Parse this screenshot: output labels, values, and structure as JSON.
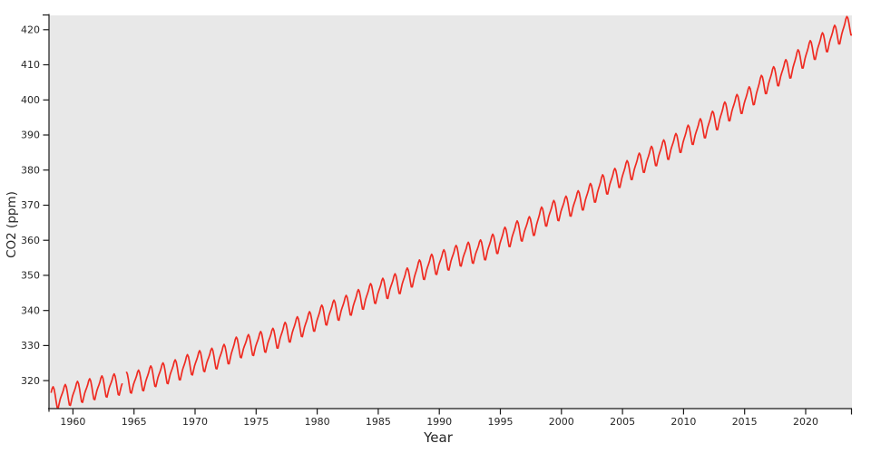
{
  "figure": {
    "background_color": "#ffffff",
    "panel_color": "#e8e8e8",
    "axis_color": "#1a1a1a",
    "text_color": "#262626"
  },
  "chart_data": {
    "type": "line",
    "title": "",
    "xlabel": "Year",
    "ylabel": "CO2 (ppm)",
    "grid": false,
    "legend": null,
    "line_color": "#ef2b22",
    "x_ticks": [
      1960,
      1965,
      1970,
      1975,
      1980,
      1985,
      1990,
      1995,
      2000,
      2005,
      2010,
      2015,
      2020
    ],
    "y_ticks": [
      320,
      330,
      340,
      350,
      360,
      370,
      380,
      390,
      400,
      410,
      420
    ],
    "x_range": [
      1958.04,
      2023.79
    ],
    "y_range": [
      312.03,
      424.08
    ],
    "series": [
      {
        "name": "CO2",
        "cadence": "monthly",
        "data_start": "1958-03",
        "data_end": "2023-10",
        "gaps": [
          {
            "from": "1964-02",
            "to": "1964-04"
          }
        ],
        "years": [
          1958,
          1959,
          1960,
          1961,
          1962,
          1963,
          1964,
          1965,
          1966,
          1967,
          1968,
          1969,
          1970,
          1971,
          1972,
          1973,
          1974,
          1975,
          1976,
          1977,
          1978,
          1979,
          1980,
          1981,
          1982,
          1983,
          1984,
          1985,
          1986,
          1987,
          1988,
          1989,
          1990,
          1991,
          1992,
          1993,
          1994,
          1995,
          1996,
          1997,
          1998,
          1999,
          2000,
          2001,
          2002,
          2003,
          2004,
          2005,
          2006,
          2007,
          2008,
          2009,
          2010,
          2011,
          2012,
          2013,
          2014,
          2015,
          2016,
          2017,
          2018,
          2019,
          2020,
          2021,
          2022,
          2023
        ],
        "annual_mean_ppm": [
          315.33,
          315.97,
          316.91,
          317.64,
          318.45,
          318.99,
          319.62,
          320.04,
          321.37,
          322.18,
          323.05,
          324.62,
          325.68,
          326.32,
          327.46,
          329.68,
          330.19,
          331.12,
          332.03,
          333.84,
          335.41,
          336.84,
          338.76,
          340.12,
          341.48,
          343.15,
          344.87,
          346.35,
          347.61,
          349.31,
          351.69,
          353.2,
          354.45,
          355.7,
          356.54,
          357.21,
          358.96,
          360.97,
          362.74,
          363.88,
          366.84,
          368.54,
          369.71,
          371.32,
          373.45,
          375.98,
          377.7,
          379.98,
          382.09,
          384.02,
          385.83,
          387.64,
          390.1,
          391.85,
          394.06,
          396.74,
          398.81,
          401.01,
          404.41,
          406.76,
          408.72,
          411.65,
          414.21,
          416.41,
          418.53,
          421.08
        ],
        "seasonal_offsets_by_month": [
          -0.1,
          0.6,
          1.4,
          2.5,
          3.0,
          2.3,
          0.7,
          -1.3,
          -3.1,
          -3.3,
          -2.1,
          -0.9
        ]
      }
    ]
  }
}
